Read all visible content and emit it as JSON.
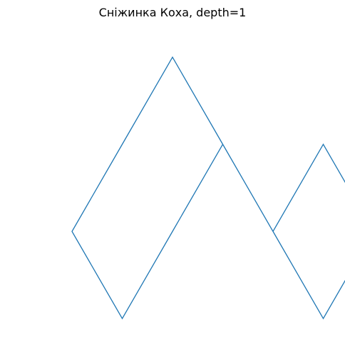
{
  "chart_data": {
    "type": "line",
    "title": "Сніжинка Коха, depth=1",
    "xlabel": "",
    "ylabel": "",
    "axes_visible": false,
    "grid": false,
    "line_color": "#1f77b4",
    "series": [
      {
        "x": [
          0,
          0.5,
          1,
          1.5,
          2,
          1.5,
          1,
          0.5,
          0,
          -0.5,
          -1,
          -0.5,
          0
        ],
        "y": [
          0,
          0.866,
          0,
          0.866,
          0,
          -0.866,
          0,
          0.866,
          1.732,
          0.866,
          0,
          -0.866,
          0
        ]
      }
    ]
  }
}
